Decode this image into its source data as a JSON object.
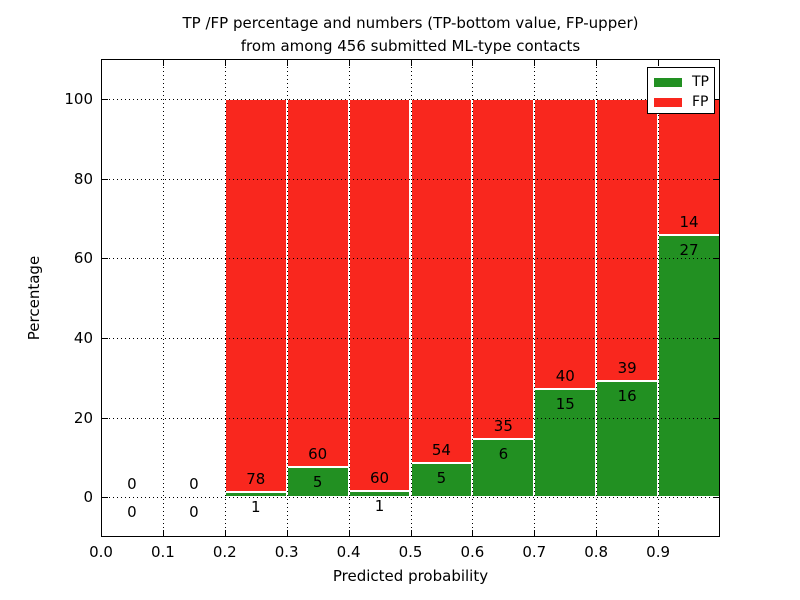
{
  "figure": {
    "title_line1": "TP /FP percentage and numbers (TP-bottom value, FP-upper)",
    "title_line2": "from among 456 submitted ML-type contacts",
    "xlabel": "Predicted probability",
    "ylabel": "Percentage"
  },
  "colors": {
    "tp_green": "#229022",
    "fp_red": "#f9271e",
    "grid": "#000000",
    "background": "#ffffff"
  },
  "legend": {
    "position": "upper right",
    "entries": [
      {
        "label": "TP",
        "color": "#229022"
      },
      {
        "label": "FP",
        "color": "#f9271e"
      }
    ]
  },
  "chart_data": {
    "type": "bar",
    "stacked": true,
    "normalized": "percent_of_bin",
    "title": "TP /FP percentage and numbers (TP-bottom value, FP-upper) from among 456 submitted ML-type contacts",
    "xlabel": "Predicted probability",
    "ylabel": "Percentage",
    "xlim": [
      0.0,
      1.0
    ],
    "ylim": [
      -10,
      110
    ],
    "xticks": [
      0.0,
      0.1,
      0.2,
      0.3,
      0.4,
      0.5,
      0.6,
      0.7,
      0.8,
      0.9
    ],
    "xtick_labels": [
      "0.0",
      "0.1",
      "0.2",
      "0.3",
      "0.4",
      "0.5",
      "0.6",
      "0.7",
      "0.8",
      "0.9"
    ],
    "yticks": [
      0,
      20,
      40,
      60,
      80,
      100
    ],
    "grid": true,
    "total_contacts": 456,
    "series": [
      {
        "name": "TP",
        "color": "#229022"
      },
      {
        "name": "FP",
        "color": "#f9271e"
      }
    ],
    "bins": [
      {
        "x0": 0.0,
        "x1": 0.1,
        "tp": 0,
        "fp": 0,
        "tp_pct": 0.0,
        "fp_pct": 0.0
      },
      {
        "x0": 0.1,
        "x1": 0.2,
        "tp": 0,
        "fp": 0,
        "tp_pct": 0.0,
        "fp_pct": 0.0
      },
      {
        "x0": 0.2,
        "x1": 0.3,
        "tp": 1,
        "fp": 78,
        "tp_pct": 1.27,
        "fp_pct": 98.73
      },
      {
        "x0": 0.3,
        "x1": 0.4,
        "tp": 5,
        "fp": 60,
        "tp_pct": 7.69,
        "fp_pct": 92.31
      },
      {
        "x0": 0.4,
        "x1": 0.5,
        "tp": 1,
        "fp": 60,
        "tp_pct": 1.64,
        "fp_pct": 98.36
      },
      {
        "x0": 0.5,
        "x1": 0.6,
        "tp": 5,
        "fp": 54,
        "tp_pct": 8.47,
        "fp_pct": 91.53
      },
      {
        "x0": 0.6,
        "x1": 0.7,
        "tp": 6,
        "fp": 35,
        "tp_pct": 14.63,
        "fp_pct": 85.37
      },
      {
        "x0": 0.7,
        "x1": 0.8,
        "tp": 15,
        "fp": 40,
        "tp_pct": 27.27,
        "fp_pct": 72.73
      },
      {
        "x0": 0.8,
        "x1": 0.9,
        "tp": 16,
        "fp": 39,
        "tp_pct": 29.09,
        "fp_pct": 70.91
      },
      {
        "x0": 0.9,
        "x1": 1.0,
        "tp": 27,
        "fp": 14,
        "tp_pct": 65.85,
        "fp_pct": 34.15
      }
    ]
  }
}
